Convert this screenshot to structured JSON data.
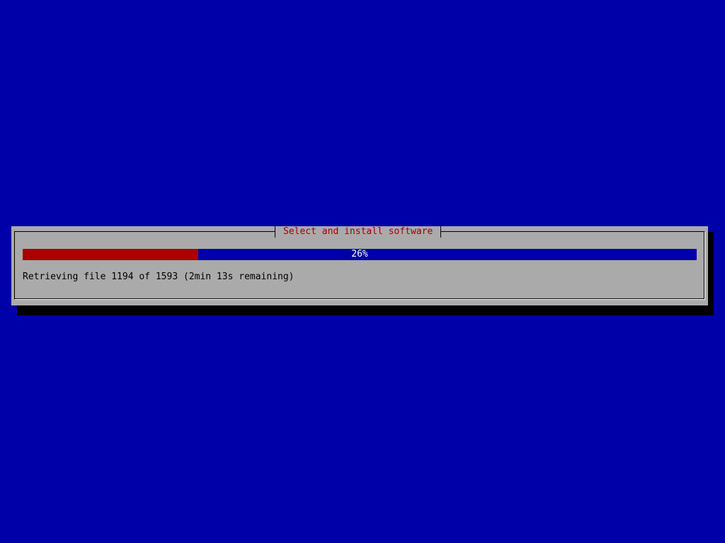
{
  "dialog": {
    "title": "Select and install software",
    "progress": {
      "percent": 26,
      "label": "26%"
    },
    "status": "Retrieving file 1194 of 1593 (2min 13s remaining)"
  },
  "colors": {
    "background": "#0000a8",
    "dialog": "#aaaaaa",
    "progress_fill": "#a80000",
    "title": "#a80000"
  }
}
